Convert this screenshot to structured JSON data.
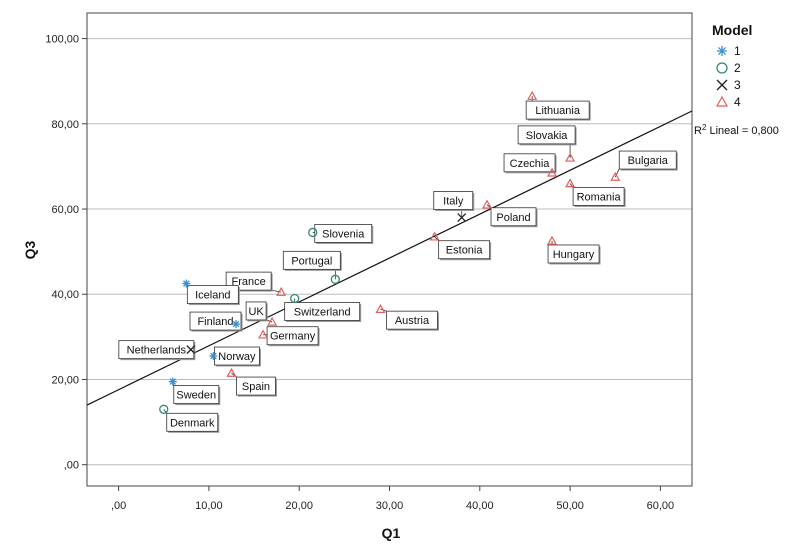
{
  "chart_data": {
    "type": "scatter",
    "xlabel": "Q1",
    "ylabel": "Q3",
    "xlim": [
      -3.5,
      63.5
    ],
    "ylim": [
      -5,
      106
    ],
    "x_ticks": [
      {
        "value": 0,
        "label": ",00"
      },
      {
        "value": 10,
        "label": "10,00"
      },
      {
        "value": 20,
        "label": "20,00"
      },
      {
        "value": 30,
        "label": "30,00"
      },
      {
        "value": 40,
        "label": "40,00"
      },
      {
        "value": 50,
        "label": "50,00"
      },
      {
        "value": 60,
        "label": "60,00"
      }
    ],
    "y_ticks": [
      {
        "value": 0,
        "label": ",00"
      },
      {
        "value": 20,
        "label": "20,00"
      },
      {
        "value": 40,
        "label": "40,00"
      },
      {
        "value": 60,
        "label": "60,00"
      },
      {
        "value": 80,
        "label": "80,00"
      },
      {
        "value": 100,
        "label": "100,00"
      }
    ],
    "grid": "horizontal",
    "legend": {
      "title": "Model",
      "placement": "top-right",
      "entries": [
        {
          "label": "1",
          "marker": "star",
          "color": "#3a8fd6"
        },
        {
          "label": "2",
          "marker": "circle",
          "color": "#2e8b6f"
        },
        {
          "label": "3",
          "marker": "x",
          "color": "#222222"
        },
        {
          "label": "4",
          "marker": "triangle",
          "color": "#e35d5d"
        }
      ]
    },
    "fit_line": {
      "label_prefix": "R",
      "label_sup": "2",
      "label_rest": " Lineal = 0,800",
      "x": [
        -3.5,
        63.5
      ],
      "y": [
        14,
        83
      ]
    },
    "points": [
      {
        "label": "Lithuania",
        "x": 45.8,
        "y": 86.5,
        "model": "4"
      },
      {
        "label": "Slovakia",
        "x": 50.0,
        "y": 72.0,
        "model": "4"
      },
      {
        "label": "Bulgaria",
        "x": 55.0,
        "y": 67.5,
        "model": "4"
      },
      {
        "label": "Czechia",
        "x": 48.0,
        "y": 68.5,
        "model": "4"
      },
      {
        "label": "Romania",
        "x": 50.0,
        "y": 66.0,
        "model": "4"
      },
      {
        "label": "Italy",
        "x": 38.0,
        "y": 58.0,
        "model": "3"
      },
      {
        "label": "Poland",
        "x": 40.8,
        "y": 61.0,
        "model": "4"
      },
      {
        "label": "Estonia",
        "x": 35.0,
        "y": 53.5,
        "model": "4"
      },
      {
        "label": "Hungary",
        "x": 48.0,
        "y": 52.5,
        "model": "4"
      },
      {
        "label": "Slovenia",
        "x": 21.5,
        "y": 54.5,
        "model": "2"
      },
      {
        "label": "Portugal",
        "x": 24.0,
        "y": 43.5,
        "model": "2"
      },
      {
        "label": "France",
        "x": 18.0,
        "y": 40.5,
        "model": "4"
      },
      {
        "label": "Iceland",
        "x": 7.5,
        "y": 42.5,
        "model": "1"
      },
      {
        "label": "Switzerland",
        "x": 19.5,
        "y": 39.0,
        "model": "2"
      },
      {
        "label": "Austria",
        "x": 29.0,
        "y": 36.5,
        "model": "4"
      },
      {
        "label": "UK",
        "x": 17.0,
        "y": 33.5,
        "model": "4"
      },
      {
        "label": "Finland",
        "x": 13.0,
        "y": 33.0,
        "model": "1"
      },
      {
        "label": "Germany",
        "x": 16.0,
        "y": 30.5,
        "model": "4"
      },
      {
        "label": "Netherlands",
        "x": 8.0,
        "y": 27.0,
        "model": "3"
      },
      {
        "label": "Norway",
        "x": 10.5,
        "y": 25.5,
        "model": "1"
      },
      {
        "label": "Spain",
        "x": 12.5,
        "y": 21.5,
        "model": "4"
      },
      {
        "label": "Sweden",
        "x": 6.0,
        "y": 19.5,
        "model": "1"
      },
      {
        "label": "Denmark",
        "x": 5.0,
        "y": 13.0,
        "model": "2"
      }
    ]
  }
}
